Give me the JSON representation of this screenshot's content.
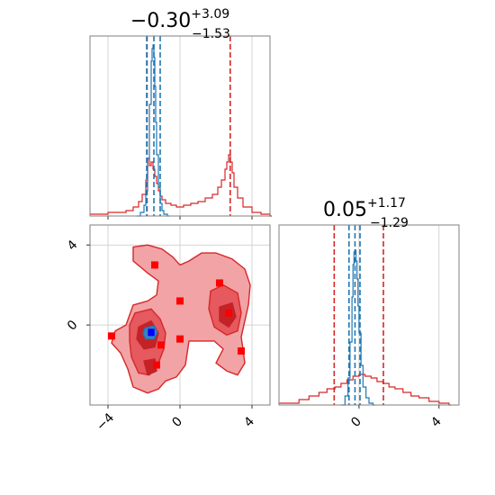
{
  "chart_data": [
    {
      "panel": "x1-marginal",
      "type": "histogram",
      "title_value": "−0.30",
      "title_sup": "+3.09",
      "title_sub": "−1.53",
      "xlim": [
        -5,
        5
      ],
      "x_ticks": [
        -4,
        0,
        4
      ],
      "tick_labels_shown": false,
      "grid": true,
      "series": [
        {
          "name": "",
          "color": "#d62728",
          "x": [
            -5.0,
            -4.0,
            -3.0,
            -2.6,
            -2.3,
            -2.1,
            -1.9,
            -1.8,
            -1.7,
            -1.6,
            -1.5,
            -1.4,
            -1.3,
            -1.2,
            -1.1,
            -1.0,
            -0.8,
            -0.5,
            -0.2,
            0.2,
            0.6,
            1.0,
            1.4,
            1.8,
            2.1,
            2.3,
            2.5,
            2.6,
            2.7,
            2.8,
            2.9,
            3.0,
            3.2,
            3.5,
            4.0,
            4.5,
            5.0
          ],
          "y": [
            0.01,
            0.02,
            0.03,
            0.05,
            0.08,
            0.12,
            0.2,
            0.32,
            0.28,
            0.3,
            0.26,
            0.22,
            0.18,
            0.14,
            0.11,
            0.09,
            0.07,
            0.06,
            0.05,
            0.06,
            0.07,
            0.08,
            0.1,
            0.12,
            0.16,
            0.2,
            0.26,
            0.3,
            0.34,
            0.3,
            0.24,
            0.16,
            0.1,
            0.05,
            0.02,
            0.01,
            0.0
          ]
        },
        {
          "name": "",
          "color": "#1f77b4",
          "x": [
            -2.4,
            -2.2,
            -2.0,
            -1.9,
            -1.8,
            -1.7,
            -1.6,
            -1.55,
            -1.5,
            -1.45,
            -1.4,
            -1.35,
            -1.3,
            -1.2,
            -1.1,
            -1.0,
            -0.9,
            -0.7
          ],
          "y": [
            0.0,
            0.02,
            0.06,
            0.14,
            0.32,
            0.62,
            0.86,
            0.93,
            0.95,
            0.88,
            0.72,
            0.52,
            0.34,
            0.16,
            0.07,
            0.03,
            0.01,
            0.0
          ]
        }
      ],
      "quantile_lines": [
        {
          "color": "#d62728",
          "x": -1.83
        },
        {
          "color": "#d62728",
          "x": 2.79
        },
        {
          "color": "#1f77b4",
          "x": -1.85
        },
        {
          "color": "#1f77b4",
          "x": -1.45
        },
        {
          "color": "#1f77b4",
          "x": -1.1
        }
      ]
    },
    {
      "panel": "x2-marginal",
      "type": "histogram",
      "title_value": "0.05",
      "title_sup": "+1.17",
      "title_sub": "−1.29",
      "xlim": [
        -4,
        5
      ],
      "x_ticks": [
        0,
        4
      ],
      "x_tick_labels": [
        "0",
        "4"
      ],
      "grid": true,
      "series": [
        {
          "name": "",
          "color": "#d62728",
          "x": [
            -4.0,
            -3.0,
            -2.5,
            -2.0,
            -1.6,
            -1.2,
            -0.9,
            -0.6,
            -0.3,
            0.0,
            0.3,
            0.6,
            0.9,
            1.2,
            1.5,
            1.8,
            2.2,
            2.6,
            3.0,
            3.5,
            4.0,
            4.5
          ],
          "y": [
            0.01,
            0.03,
            0.05,
            0.07,
            0.09,
            0.1,
            0.12,
            0.14,
            0.16,
            0.17,
            0.16,
            0.15,
            0.13,
            0.12,
            0.1,
            0.09,
            0.07,
            0.05,
            0.04,
            0.02,
            0.01,
            0.0
          ]
        },
        {
          "name": "",
          "color": "#1f77b4",
          "x": [
            -0.9,
            -0.7,
            -0.55,
            -0.45,
            -0.35,
            -0.3,
            -0.25,
            -0.2,
            -0.15,
            -0.1,
            -0.05,
            0.0,
            0.1,
            0.2,
            0.35,
            0.5,
            0.7
          ],
          "y": [
            0.0,
            0.05,
            0.15,
            0.35,
            0.6,
            0.78,
            0.85,
            0.86,
            0.8,
            0.7,
            0.55,
            0.4,
            0.22,
            0.1,
            0.04,
            0.01,
            0.0
          ]
        }
      ],
      "quantile_lines": [
        {
          "color": "#d62728",
          "x": -1.24
        },
        {
          "color": "#d62728",
          "x": 1.22
        },
        {
          "color": "#1f77b4",
          "x": -0.5
        },
        {
          "color": "#1f77b4",
          "x": -0.2
        },
        {
          "color": "#1f77b4",
          "x": 0.05
        }
      ]
    },
    {
      "panel": "joint",
      "type": "contour",
      "xlim": [
        -5,
        5
      ],
      "ylim": [
        -4,
        5
      ],
      "x_ticks": [
        -4,
        0,
        4
      ],
      "x_tick_labels": [
        "−4",
        "0",
        "4"
      ],
      "y_ticks": [
        0,
        4
      ],
      "y_tick_labels": [
        "0",
        "4"
      ],
      "grid": true,
      "levels": [
        {
          "fill": "#f2a3a6",
          "stroke": "#d62728",
          "points": [
            [
              -2.6,
              1.0
            ],
            [
              -1.8,
              1.2
            ],
            [
              -1.3,
              1.5
            ],
            [
              -1.2,
              2.2
            ],
            [
              -1.8,
              2.6
            ],
            [
              -2.6,
              3.2
            ],
            [
              -2.6,
              3.9
            ],
            [
              -1.8,
              4.0
            ],
            [
              -1.0,
              3.8
            ],
            [
              -0.4,
              3.4
            ],
            [
              0.0,
              3.0
            ],
            [
              0.5,
              3.2
            ],
            [
              1.2,
              3.6
            ],
            [
              2.0,
              3.6
            ],
            [
              2.9,
              3.3
            ],
            [
              3.6,
              2.8
            ],
            [
              3.9,
              2.0
            ],
            [
              3.8,
              1.0
            ],
            [
              3.6,
              0.2
            ],
            [
              3.4,
              -0.6
            ],
            [
              3.5,
              -1.2
            ],
            [
              3.6,
              -1.9
            ],
            [
              3.2,
              -2.5
            ],
            [
              2.6,
              -2.3
            ],
            [
              2.0,
              -1.9
            ],
            [
              2.4,
              -1.2
            ],
            [
              1.9,
              -0.8
            ],
            [
              0.5,
              -0.8
            ],
            [
              0.4,
              -1.4
            ],
            [
              0.3,
              -2.0
            ],
            [
              -0.2,
              -2.6
            ],
            [
              -0.8,
              -2.8
            ],
            [
              -1.2,
              -3.2
            ],
            [
              -1.8,
              -3.4
            ],
            [
              -2.6,
              -3.1
            ],
            [
              -2.9,
              -2.2
            ],
            [
              -3.3,
              -1.4
            ],
            [
              -3.8,
              -0.9
            ],
            [
              -3.6,
              -0.3
            ],
            [
              -3.0,
              0.0
            ],
            [
              -2.8,
              0.5
            ]
          ]
        },
        {
          "fill": "#e6595e",
          "stroke": "#d62728",
          "points": [
            [
              -2.5,
              0.6
            ],
            [
              -1.6,
              0.8
            ],
            [
              -1.1,
              0.3
            ],
            [
              -0.8,
              -0.4
            ],
            [
              -0.9,
              -1.2
            ],
            [
              -1.2,
              -1.9
            ],
            [
              -1.7,
              -2.5
            ],
            [
              -2.3,
              -2.4
            ],
            [
              -2.7,
              -1.6
            ],
            [
              -2.8,
              -0.8
            ],
            [
              -2.8,
              0.0
            ]
          ]
        },
        {
          "fill": "#e6595e",
          "stroke": "#d62728",
          "points": [
            [
              1.7,
              1.7
            ],
            [
              2.4,
              2.0
            ],
            [
              3.2,
              1.6
            ],
            [
              3.4,
              0.6
            ],
            [
              3.2,
              -0.3
            ],
            [
              2.6,
              -0.5
            ],
            [
              1.9,
              -0.1
            ],
            [
              1.6,
              0.8
            ]
          ]
        },
        {
          "fill": "#c42227",
          "stroke": "#c42227",
          "points": [
            [
              -2.3,
              -0.1
            ],
            [
              -1.6,
              0.2
            ],
            [
              -1.2,
              -0.4
            ],
            [
              -1.4,
              -1.1
            ],
            [
              -2.0,
              -1.2
            ],
            [
              -2.4,
              -0.7
            ]
          ]
        },
        {
          "fill": "#c42227",
          "stroke": "#c42227",
          "points": [
            [
              2.2,
              0.9
            ],
            [
              2.9,
              1.1
            ],
            [
              3.1,
              0.4
            ],
            [
              2.7,
              -0.1
            ],
            [
              2.2,
              0.2
            ]
          ]
        },
        {
          "fill": "#c42227",
          "stroke": "#c42227",
          "points": [
            [
              -2.0,
              -1.8
            ],
            [
              -1.4,
              -1.7
            ],
            [
              -1.3,
              -2.3
            ],
            [
              -1.8,
              -2.5
            ]
          ]
        },
        {
          "fill": "#3b82c4",
          "stroke": "#1f77b4",
          "points": [
            [
              -1.95,
              -0.15
            ],
            [
              -1.45,
              -0.05
            ],
            [
              -1.25,
              -0.35
            ],
            [
              -1.45,
              -0.7
            ],
            [
              -1.9,
              -0.7
            ],
            [
              -2.05,
              -0.45
            ]
          ]
        },
        {
          "fill": "#0000ff",
          "stroke": "#0000ff",
          "points": [
            [
              -1.75,
              -0.22
            ],
            [
              -1.45,
              -0.22
            ],
            [
              -1.45,
              -0.52
            ],
            [
              -1.75,
              -0.52
            ]
          ]
        }
      ],
      "scatter": {
        "color": "#ff0000",
        "points": [
          [
            -1.4,
            3.0
          ],
          [
            2.2,
            2.1
          ],
          [
            0.0,
            1.2
          ],
          [
            2.7,
            0.6
          ],
          [
            -1.05,
            -1.0
          ],
          [
            0.0,
            -0.7
          ],
          [
            -3.8,
            -0.55
          ],
          [
            3.4,
            -1.3
          ],
          [
            -1.3,
            -2.0
          ]
        ]
      }
    }
  ]
}
